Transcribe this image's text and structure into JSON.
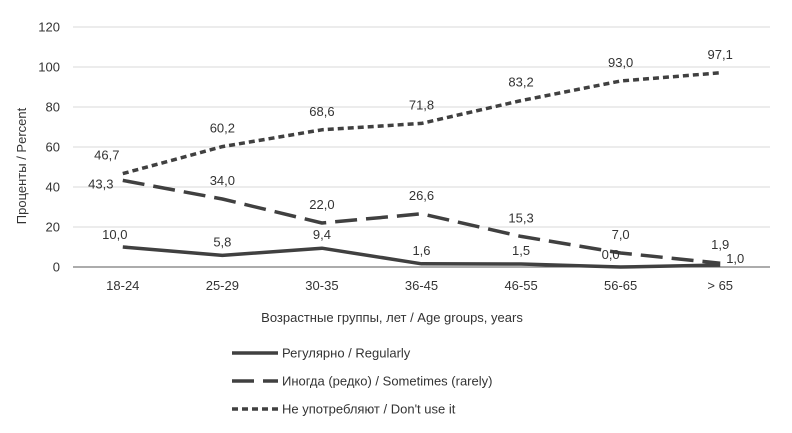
{
  "chart_data": {
    "type": "line",
    "title": "",
    "xlabel": "Возрастные группы, лет / Age groups, years",
    "ylabel": "Проценты / Percent",
    "ylim": [
      0,
      120
    ],
    "yticks": [
      0,
      20,
      40,
      60,
      80,
      100,
      120
    ],
    "ytick_labels": [
      "0",
      "20",
      "40",
      "60",
      "80",
      "100",
      "120"
    ],
    "grid": "horizontal",
    "legend_position": "bottom",
    "categories": [
      "18-24",
      "25-29",
      "30-35",
      "36-45",
      "46-55",
      "56-65",
      "> 65"
    ],
    "series": [
      {
        "name": "Регулярно / Regularly",
        "style": "solid",
        "color": "#404040",
        "values": [
          10.0,
          5.8,
          9.4,
          1.6,
          1.5,
          0.0,
          1.0
        ],
        "labels": [
          "10,0",
          "5,8",
          "9,4",
          "1,6",
          "1,5",
          "0,0",
          "1,0"
        ]
      },
      {
        "name": "Иногда (редко) / Sometimes (rarely)",
        "style": "long-dash",
        "color": "#404040",
        "values": [
          43.3,
          34.0,
          22.0,
          26.6,
          15.3,
          7.0,
          1.9
        ],
        "labels": [
          "43,3",
          "34,0",
          "22,0",
          "26,6",
          "15,3",
          "7,0",
          "1,9"
        ]
      },
      {
        "name": "Не употребляют / Don't use it",
        "style": "short-dash",
        "color": "#404040",
        "values": [
          46.7,
          60.2,
          68.6,
          71.8,
          83.2,
          93.0,
          97.1
        ],
        "labels": [
          "46,7",
          "60,2",
          "68,6",
          "71,8",
          "83,2",
          "93,0",
          "97,1"
        ]
      }
    ]
  }
}
